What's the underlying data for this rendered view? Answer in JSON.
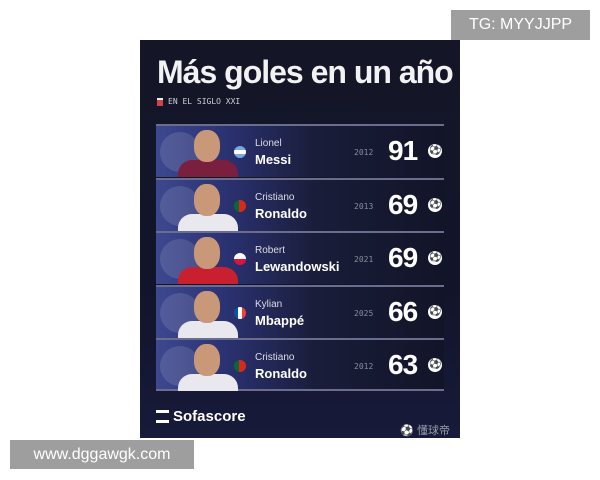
{
  "title": "Más goles en un año",
  "subtitle": "EN EL SIGLO XXI",
  "players": [
    {
      "first": "Lionel",
      "last": "Messi",
      "year": "2012",
      "goals": "91",
      "flag": "argentina",
      "kit": "#7a1f3d"
    },
    {
      "first": "Cristiano",
      "last": "Ronaldo",
      "year": "2013",
      "goals": "69",
      "flag": "portugal",
      "kit": "#e8e8ee"
    },
    {
      "first": "Robert",
      "last": "Lewandowski",
      "year": "2021",
      "goals": "69",
      "flag": "poland",
      "kit": "#c8202f"
    },
    {
      "first": "Kylian",
      "last": "Mbappé",
      "year": "2025",
      "goals": "66",
      "flag": "france",
      "kit": "#e8e8ee"
    },
    {
      "first": "Cristiano",
      "last": "Ronaldo",
      "year": "2012",
      "goals": "63",
      "flag": "portugal",
      "kit": "#e8e8ee"
    }
  ],
  "brand": "Sofascore",
  "watermark_cn": "懂球帝",
  "tg_label": "TG: MYYJJPP",
  "website": "www.dggawgk.com"
}
